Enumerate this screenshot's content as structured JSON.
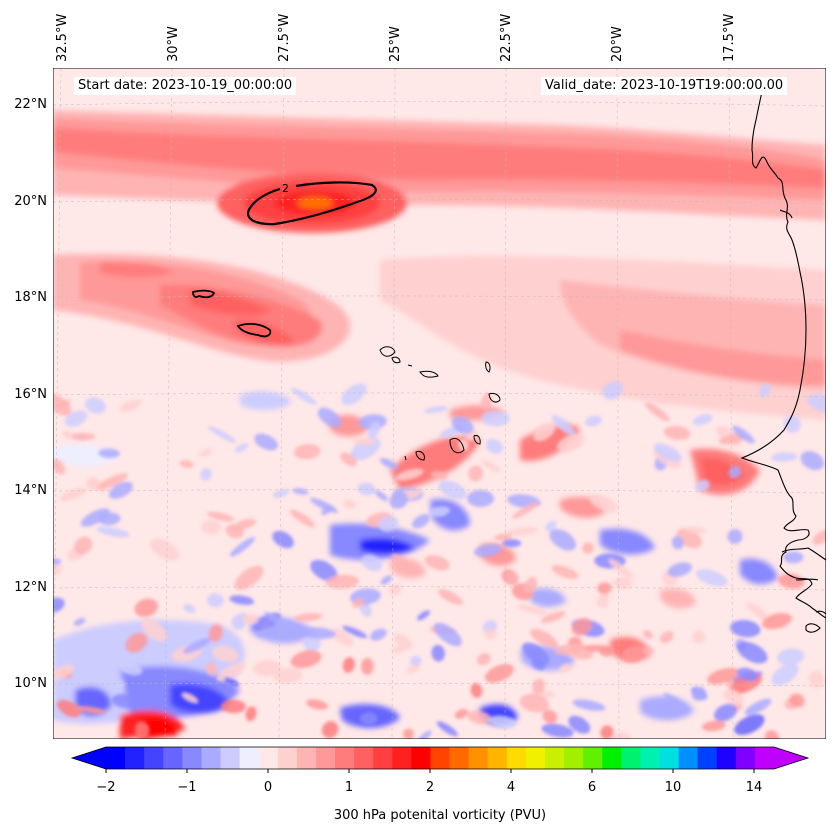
{
  "start_date": "Start date: 2023-10-19_00:00:00",
  "valid_date": "Valid_date: 2023-10-19T19:00:00.00",
  "lon_labels": [
    "32.5°W",
    "30°W",
    "27.5°W",
    "25°W",
    "22.5°W",
    "20°W",
    "17.5°W"
  ],
  "lat_labels": [
    "22°N",
    "20°N",
    "18°N",
    "16°N",
    "14°N",
    "12°N",
    "10°N"
  ],
  "contour_label": "2",
  "colorbar": {
    "title": "300 hPa potenital vorticity (PVU)",
    "ticks": [
      "−2",
      "−1",
      "0",
      "1",
      "2",
      "4",
      "6",
      "10",
      "14"
    ],
    "colors": [
      "#0000ff",
      "#2222ff",
      "#4444ff",
      "#6666ff",
      "#8888ff",
      "#aaaaff",
      "#ccccff",
      "#eeeeff",
      "#ffe8e8",
      "#ffd0d0",
      "#ffb4b4",
      "#ff9898",
      "#ff7c7c",
      "#ff6060",
      "#ff4040",
      "#ff2020",
      "#ff0000",
      "#ff4400",
      "#ff6a00",
      "#ff9000",
      "#ffb400",
      "#ffdc00",
      "#f0f000",
      "#c8f000",
      "#a0f000",
      "#60f000",
      "#00f000",
      "#00f070",
      "#00f0b0",
      "#00e0e0",
      "#0090ff",
      "#0040ff",
      "#2000ff",
      "#8000ff",
      "#c000ff"
    ],
    "arrow_left_color": "#0000ff",
    "arrow_right_color": "#c000ff"
  }
}
